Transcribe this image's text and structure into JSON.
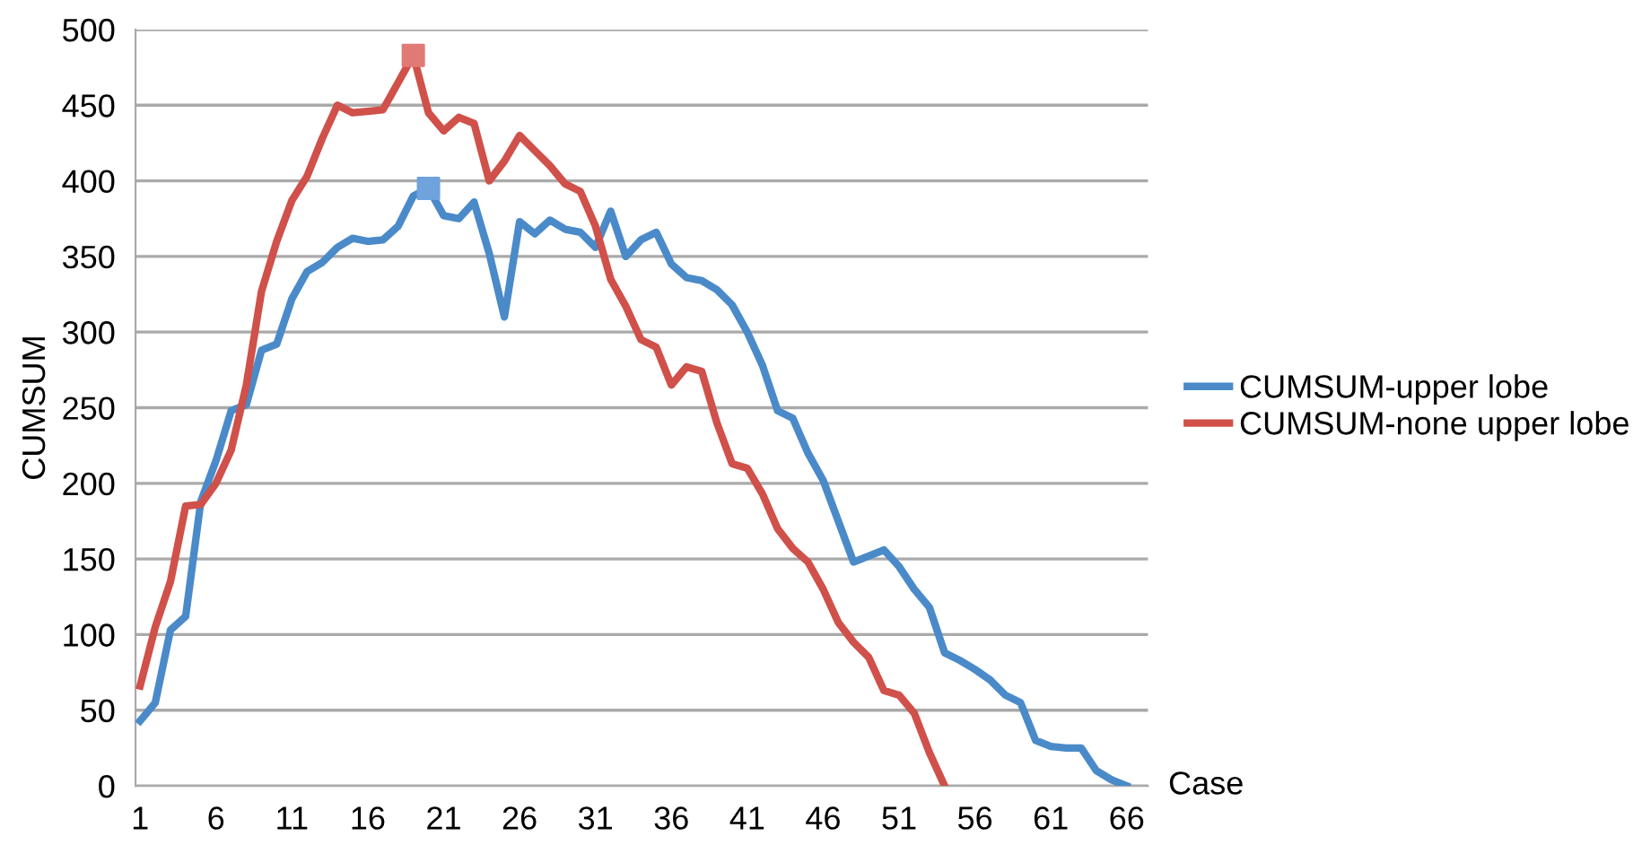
{
  "chart_data": {
    "type": "line",
    "xlabel": "Case",
    "ylabel": "CUMSUM",
    "xlim": [
      0.7,
      67.4
    ],
    "xticks": [
      1,
      6,
      11,
      16,
      21,
      26,
      31,
      36,
      41,
      46,
      51,
      56,
      61,
      66
    ],
    "ylim": [
      0,
      500
    ],
    "yticks": [
      0,
      50,
      100,
      150,
      200,
      250,
      300,
      350,
      400,
      450,
      500
    ],
    "grid": "y",
    "legend": "right",
    "marker": "none",
    "line_style": "solid",
    "series": [
      {
        "name": "CUMSUM-upper lobe",
        "color": "#4a8ac9",
        "x": [
          1,
          2,
          3,
          4,
          5,
          6,
          7,
          8,
          9,
          10,
          11,
          12,
          13,
          14,
          15,
          16,
          17,
          18,
          19,
          20,
          21,
          22,
          23,
          24,
          25,
          26,
          27,
          28,
          29,
          30,
          31,
          32,
          33,
          34,
          35,
          36,
          37,
          38,
          39,
          40,
          41,
          42,
          43,
          44,
          45,
          46,
          47,
          48,
          49,
          50,
          51,
          52,
          53,
          54,
          55,
          56,
          57,
          58,
          59,
          60,
          61,
          62,
          63,
          64,
          65,
          66
        ],
        "values": [
          43,
          55,
          103,
          112,
          188,
          215,
          248,
          252,
          288,
          292,
          322,
          340,
          346,
          356,
          362,
          360,
          361,
          370,
          390,
          395,
          377,
          375,
          386,
          352,
          310,
          373,
          365,
          374,
          368,
          366,
          356,
          380,
          350,
          361,
          366,
          345,
          336,
          334,
          328,
          318,
          300,
          278,
          248,
          243,
          220,
          202,
          175,
          148,
          152,
          156,
          145,
          130,
          118,
          88,
          83,
          77,
          70,
          60,
          55,
          30,
          26,
          25,
          25,
          10,
          4,
          0
        ]
      },
      {
        "name": "CUMSUM-none upper lobe",
        "color": "#d0504a",
        "x": [
          1,
          2,
          3,
          4,
          5,
          6,
          7,
          8,
          9,
          10,
          11,
          12,
          13,
          14,
          15,
          16,
          17,
          18,
          19,
          20,
          21,
          22,
          23,
          24,
          25,
          26,
          27,
          28,
          29,
          30,
          31,
          32,
          33,
          34,
          35,
          36,
          37,
          38,
          39,
          40,
          41,
          42,
          43,
          44,
          45,
          46,
          47,
          48,
          49,
          50,
          51,
          52,
          53,
          54
        ],
        "values": [
          66,
          105,
          135,
          185,
          186,
          200,
          222,
          265,
          327,
          360,
          387,
          403,
          428,
          450,
          445,
          446,
          447,
          465,
          483,
          445,
          433,
          442,
          438,
          400,
          413,
          430,
          420,
          410,
          398,
          393,
          370,
          335,
          317,
          295,
          290,
          265,
          277,
          274,
          240,
          213,
          210,
          193,
          170,
          157,
          148,
          130,
          108,
          95,
          85,
          63,
          60,
          48,
          22,
          0
        ]
      },
      {
        "type": "scatter",
        "color": "#6fa3dc",
        "marker": "square",
        "x": [
          20
        ],
        "values": [
          395
        ]
      },
      {
        "type": "scatter",
        "color": "#e07a75",
        "marker": "square",
        "x": [
          19
        ],
        "values": [
          483
        ]
      }
    ]
  }
}
